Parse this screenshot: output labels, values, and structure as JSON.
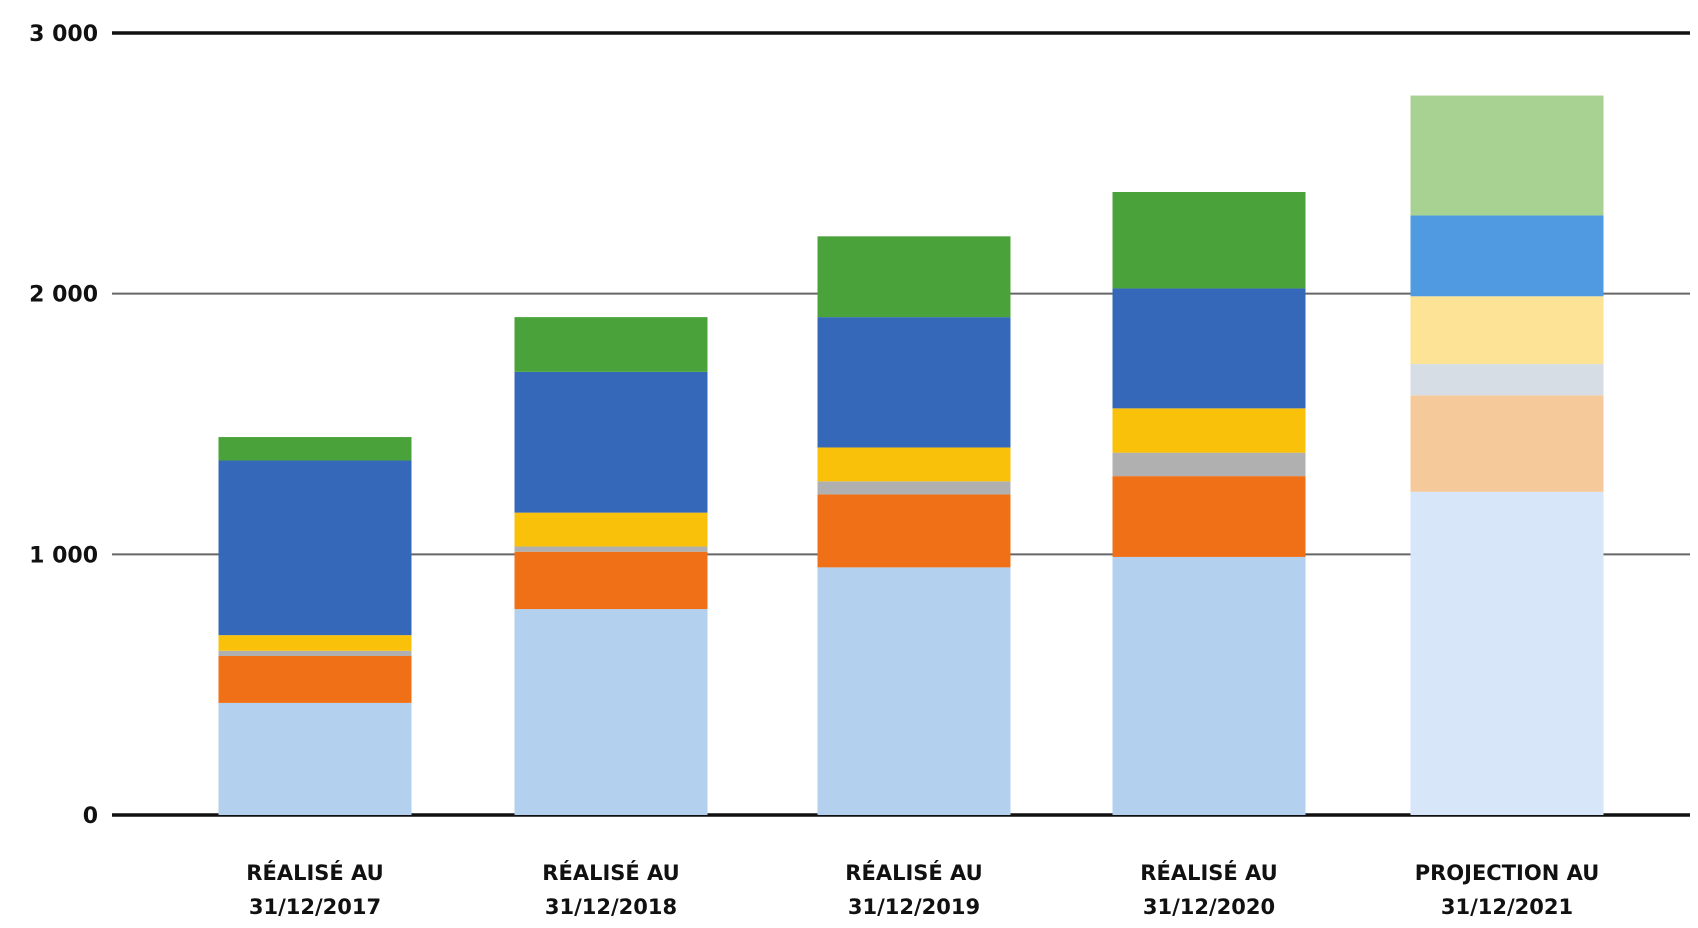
{
  "chart_data": {
    "type": "bar",
    "stacked": true,
    "categories": [
      [
        "RÉALISÉ AU",
        "31/12/2017"
      ],
      [
        "RÉALISÉ AU",
        "31/12/2018"
      ],
      [
        "RÉALISÉ AU",
        "31/12/2019"
      ],
      [
        "RÉALISÉ AU",
        "31/12/2020"
      ],
      [
        "PROJECTION AU",
        "31/12/2021"
      ]
    ],
    "y_ticks": [
      "0",
      "1 000",
      "2 000",
      "3 000"
    ],
    "ylim": [
      0,
      3000
    ],
    "grid": true,
    "legend": "none",
    "series": [
      {
        "color": "#b3d1ef",
        "values": [
          430,
          790,
          950,
          990,
          1240
        ]
      },
      {
        "color": "#ef7017",
        "values": [
          180,
          220,
          280,
          310,
          370
        ]
      },
      {
        "color": "#b0b0b0",
        "values": [
          20,
          20,
          50,
          90,
          120
        ]
      },
      {
        "color": "#f9c10a",
        "values": [
          60,
          130,
          130,
          170,
          260
        ]
      },
      {
        "color": "#3568b8",
        "values": [
          670,
          540,
          500,
          460,
          310
        ]
      },
      {
        "color": "#4aa33a",
        "values": [
          90,
          210,
          310,
          370,
          460
        ]
      }
    ],
    "projection_index": 4,
    "projection_colors": [
      "#d7e6f8",
      "#f6c99a",
      "#d6dde5",
      "#fce395",
      "#4f9ae0",
      "#a8d291"
    ]
  }
}
